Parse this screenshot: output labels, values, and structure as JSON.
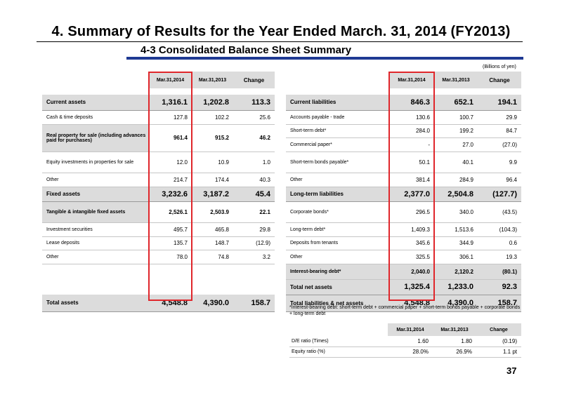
{
  "title": "4. Summary of Results for the Year Ended March. 31, 2014 (FY2013)",
  "subtitle": "4-3 Consolidated Balance Sheet Summary",
  "units": "(Billions of yen)",
  "headers": {
    "c1": "Mar.31,2014",
    "c2": "Mar.31,2013",
    "c3": "Change"
  },
  "assets": [
    {
      "label": "Current assets",
      "v1": "1,316.1",
      "v2": "1,202.8",
      "v3": "113.3"
    },
    {
      "label": "Cash & time deposits",
      "v1": "127.8",
      "v2": "102.2",
      "v3": "25.6"
    },
    {
      "label": "Real property for sale (including advances paid for purchases)",
      "v1": "961.4",
      "v2": "915.2",
      "v3": "46.2"
    },
    {
      "label": "Equity investments in properties for sale",
      "v1": "12.0",
      "v2": "10.9",
      "v3": "1.0"
    },
    {
      "label": "Other",
      "v1": "214.7",
      "v2": "174.4",
      "v3": "40.3"
    },
    {
      "label": "Fixed assets",
      "v1": "3,232.6",
      "v2": "3,187.2",
      "v3": "45.4"
    },
    {
      "label": "Tangible & intangible fixed assets",
      "v1": "2,526.1",
      "v2": "2,503.9",
      "v3": "22.1"
    },
    {
      "label": "Investment securities",
      "v1": "495.7",
      "v2": "465.8",
      "v3": "29.8"
    },
    {
      "label": "Lease deposits",
      "v1": "135.7",
      "v2": "148.7",
      "v3": "(12.9)"
    },
    {
      "label": "Other",
      "v1": "78.0",
      "v2": "74.8",
      "v3": "3.2"
    },
    {
      "label": "Total assets",
      "v1": "4,548.8",
      "v2": "4,390.0",
      "v3": "158.7"
    }
  ],
  "liabilities": [
    {
      "label": "Current liabilities",
      "v1": "846.3",
      "v2": "652.1",
      "v3": "194.1"
    },
    {
      "label": "Accounts payable - trade",
      "v1": "130.6",
      "v2": "100.7",
      "v3": "29.9"
    },
    {
      "label": "Short-term debt*",
      "v1": "284.0",
      "v2": "199.2",
      "v3": "84.7"
    },
    {
      "label": "Commercial paper*",
      "v1": "-",
      "v2": "27.0",
      "v3": "(27.0)"
    },
    {
      "label": "Short-term bonds payable*",
      "v1": "50.1",
      "v2": "40.1",
      "v3": "9.9"
    },
    {
      "label": "Other",
      "v1": "381.4",
      "v2": "284.9",
      "v3": "96.4"
    },
    {
      "label": "Long-term liabilities",
      "v1": "2,377.0",
      "v2": "2,504.8",
      "v3": "(127.7)"
    },
    {
      "label": "Corporate bonds*",
      "v1": "296.5",
      "v2": "340.0",
      "v3": "(43.5)"
    },
    {
      "label": "Long-term debt*",
      "v1": "1,409.3",
      "v2": "1,513.6",
      "v3": "(104.3)"
    },
    {
      "label": "Deposits from tenants",
      "v1": "345.6",
      "v2": "344.9",
      "v3": "0.6"
    },
    {
      "label": "Other",
      "v1": "325.5",
      "v2": "306.1",
      "v3": "19.3"
    },
    {
      "label": "Interest-bearing debt*",
      "v1": "2,040.0",
      "v2": "2,120.2",
      "v3": "(80.1)"
    },
    {
      "label": "Total net assets",
      "v1": "1,325.4",
      "v2": "1,233.0",
      "v3": "92.3"
    },
    {
      "label": "Total liabilities & net assets",
      "v1": "4,548.8",
      "v2": "4,390.0",
      "v3": "158.7"
    }
  ],
  "note": "*Interest-bearing debt: short-term debt + commercial paper + short-term bonds payable + corporate bonds + long-term debt",
  "ratios": [
    {
      "label": "D/E ratio (Times)",
      "v1": "1.60",
      "v2": "1.80",
      "v3": "(0.19)"
    },
    {
      "label": "Equity ratio (%)",
      "v1": "28.0%",
      "v2": "26.9%",
      "v3": "1.1 pt"
    }
  ],
  "page_number": "37",
  "colors": {
    "accent_bar": "#1f3a93",
    "highlight_box": "#e0262b",
    "header_fill": "#dcdcdc"
  }
}
